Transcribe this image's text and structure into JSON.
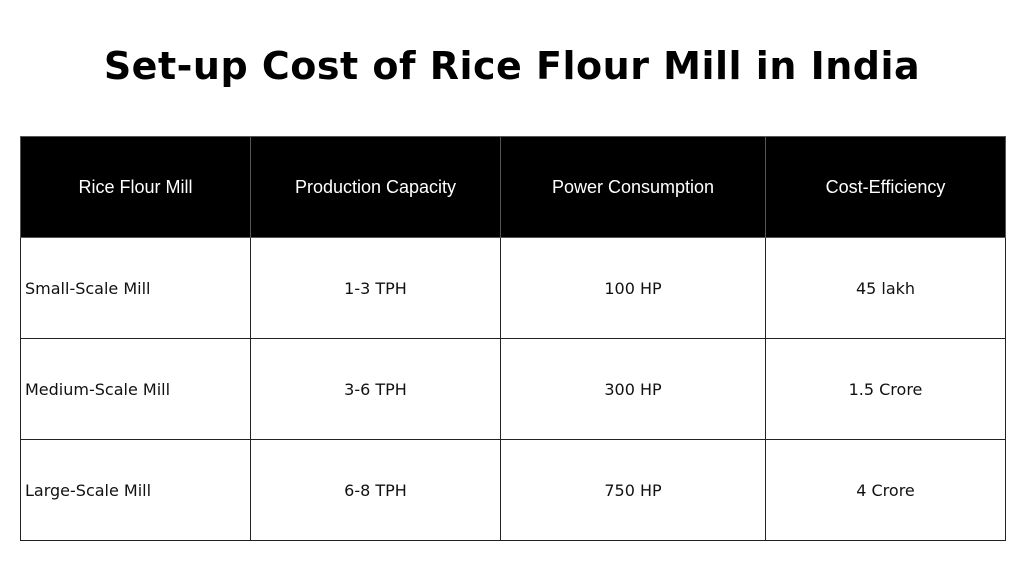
{
  "header": {
    "title": "Set-up Cost of Rice Flour Mill in India"
  },
  "table": {
    "columns": [
      "Rice Flour Mill",
      "Production Capacity",
      "Power Consumption",
      "Cost-Efficiency"
    ],
    "rows": [
      [
        "Small-Scale Mill",
        "1-3 TPH",
        "100 HP",
        "45 lakh"
      ],
      [
        "Medium-Scale Mill",
        "3-6 TPH",
        "300 HP",
        "1.5 Crore"
      ],
      [
        "Large-Scale Mill",
        "6-8 TPH",
        "750 HP",
        "4 Crore"
      ]
    ]
  }
}
